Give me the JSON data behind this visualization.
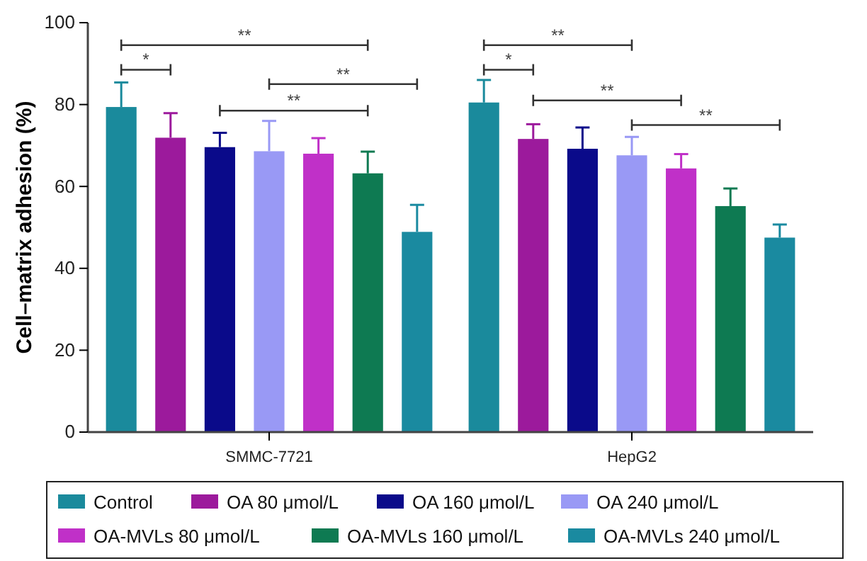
{
  "chart_data": {
    "type": "bar",
    "ylabel": "Cell–matrix adhesion (%)",
    "categories": [
      "SMMC-7721",
      "HepG2"
    ],
    "ylim": [
      0,
      100
    ],
    "yticks": [
      0,
      20,
      40,
      60,
      80,
      100
    ],
    "grid": false,
    "legend": "bottom",
    "series": [
      {
        "name": "Control",
        "color": "#1a8a9c",
        "values": [
          79.4,
          80.5
        ],
        "errors": [
          6,
          5.5
        ]
      },
      {
        "name": "OA 80 μmol/L",
        "color": "#9c1a9c",
        "values": [
          71.9,
          71.6
        ],
        "errors": [
          6,
          3.6
        ]
      },
      {
        "name": "OA 160 μmol/L",
        "color": "#0a0a8a",
        "values": [
          69.6,
          69.2
        ],
        "errors": [
          3.5,
          5.2
        ]
      },
      {
        "name": "OA 240 μmol/L",
        "color": "#9999f5",
        "values": [
          68.6,
          67.6
        ],
        "errors": [
          7.4,
          4.5
        ]
      },
      {
        "name": "OA-MVLs 80 μmol/L",
        "color": "#c030c8",
        "values": [
          68.0,
          64.4
        ],
        "errors": [
          3.8,
          3.5
        ]
      },
      {
        "name": "OA-MVLs 160 μmol/L",
        "color": "#0e7a52",
        "values": [
          63.2,
          55.2
        ],
        "errors": [
          5.3,
          4.3
        ]
      },
      {
        "name": "OA-MVLs 240 μmol/L",
        "color": "#1a8aa0",
        "values": [
          48.9,
          47.5
        ],
        "errors": [
          6.6,
          3.2
        ]
      }
    ],
    "annotations": [
      "**",
      "*",
      "**",
      "**",
      "**",
      "*",
      "**",
      "**"
    ]
  }
}
